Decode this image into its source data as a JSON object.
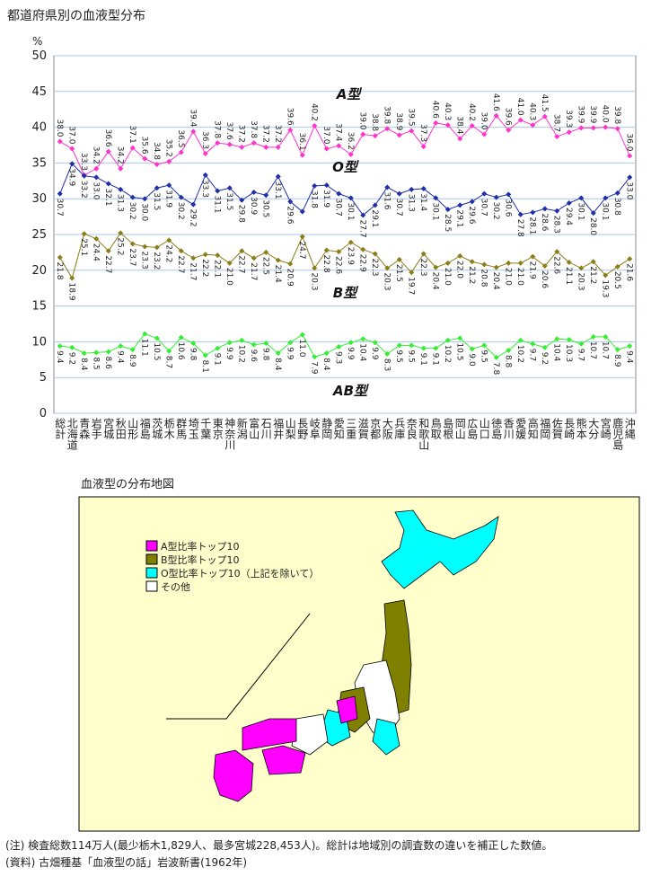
{
  "chart_data": {
    "type": "line",
    "title": "都道府県別の血液型分布",
    "y_label": "%",
    "categories": [
      "総計",
      "北海道",
      "青森",
      "岩手",
      "宮城",
      "秋田",
      "山形",
      "福島",
      "茨城",
      "栃木",
      "群馬",
      "埼玉",
      "千葉",
      "東京",
      "神奈川",
      "新潟",
      "富山",
      "石川",
      "福井",
      "山梨",
      "長野",
      "岐阜",
      "静岡",
      "愛知",
      "三重",
      "滋賀",
      "京都",
      "大阪",
      "兵庫",
      "奈良",
      "和歌山",
      "鳥取",
      "島根",
      "岡山",
      "広島",
      "山口",
      "徳島",
      "香川",
      "愛媛",
      "高知",
      "福岡",
      "佐賀",
      "長崎",
      "熊本",
      "大分",
      "宮崎",
      "鹿児島",
      "沖縄"
    ],
    "ylim": [
      0,
      50
    ],
    "yticks": [
      0,
      5,
      10,
      15,
      20,
      25,
      30,
      35,
      40,
      45,
      50
    ],
    "grid": true,
    "series": [
      {
        "name": "A型",
        "color": "#ff33cc",
        "values": [
          38.0,
          37.0,
          33.3,
          34.2,
          36.6,
          34.2,
          37.1,
          35.6,
          34.8,
          35.2,
          36.5,
          39.4,
          36.3,
          37.8,
          37.6,
          37.2,
          37.8,
          37.2,
          37.2,
          39.6,
          36.1,
          40.2,
          37.0,
          37.4,
          36.2,
          39.0,
          38.8,
          39.8,
          38.9,
          39.5,
          37.3,
          40.6,
          40.3,
          38.4,
          40.2,
          39.0,
          41.6,
          39.6,
          41.0,
          40.3,
          41.5,
          38.7,
          39.3,
          39.9,
          39.9,
          40.0,
          39.8,
          36.0
        ],
        "value_labels": [
          "38.0",
          "37.0",
          "33.3",
          "34.2",
          "36.6",
          "34.2",
          "37.1",
          "35.6",
          "34.8",
          "35.2",
          "36.5",
          "39.4",
          "36.3",
          "37.8",
          "37.6",
          "37.2",
          "37.8",
          "37.2",
          "37.2",
          "39.6",
          "36.1",
          "40.2",
          "37.0",
          "37.4",
          "36.2",
          "39.0",
          "38.8",
          "39.8",
          "38.9",
          "39.5",
          "37.3",
          "40.6",
          "40.3",
          "38.4",
          "40.2",
          "39.0",
          "41.6",
          "39.6",
          "41.0",
          "40.3",
          "41.5",
          "38.7",
          "39.3",
          "39.9",
          "39.9",
          "40.0",
          "39.8",
          "36.0"
        ]
      },
      {
        "name": "O型",
        "color": "#1f2fa8",
        "values": [
          30.7,
          34.9,
          33.2,
          33.0,
          32.1,
          31.3,
          30.2,
          30.0,
          31.5,
          31.9,
          30.2,
          29.2,
          33.3,
          31.1,
          31.5,
          29.8,
          30.9,
          30.5,
          33.1,
          29.6,
          28.2,
          31.8,
          31.9,
          30.7,
          30.1,
          27.7,
          29.1,
          31.6,
          30.7,
          31.3,
          31.4,
          30.1,
          28.5,
          29.1,
          29.6,
          30.7,
          30.2,
          30.6,
          27.8,
          28.1,
          28.6,
          28.3,
          29.4,
          30.1,
          28.0,
          30.1,
          30.8,
          33.0
        ],
        "value_labels": [
          "30.7",
          "34.9",
          "33.2",
          "33.0",
          "32.1",
          "31.3",
          "30.2",
          "30.0",
          "31.5",
          "31.9",
          "30.2",
          "29.2",
          "33.3",
          "31.1",
          "31.5",
          "29.8",
          "30.9",
          "30.5",
          "33.1",
          "29.6",
          null,
          "31.8",
          "31.9",
          "30.7",
          "30.1",
          "27.7",
          "29.1",
          "31.6",
          "30.7",
          "31.3",
          "31.4",
          "30.1",
          "28.5",
          "29.1",
          "29.6",
          "30.7",
          "30.2",
          "30.6",
          "27.8",
          "28.1",
          "28.6",
          "28.3",
          "29.4",
          "30.1",
          "28.0",
          "30.1",
          "30.8",
          "33.0"
        ]
      },
      {
        "name": "B型",
        "color": "#8b7d1a",
        "values": [
          21.8,
          18.9,
          25.1,
          24.4,
          22.7,
          25.2,
          23.7,
          23.3,
          23.2,
          24.2,
          22.7,
          21.7,
          22.2,
          22.1,
          21.0,
          22.7,
          21.7,
          22.5,
          21.4,
          20.9,
          24.7,
          20.3,
          22.8,
          22.6,
          23.9,
          22.9,
          22.3,
          20.3,
          21.5,
          19.7,
          22.3,
          20.4,
          21.0,
          22.0,
          21.2,
          20.8,
          20.4,
          21.0,
          21.0,
          21.9,
          20.6,
          22.6,
          21.1,
          20.3,
          21.2,
          19.3,
          20.5,
          21.6
        ],
        "value_labels": [
          "21.8",
          "18.9",
          "25.1",
          "24.4",
          "22.7",
          "25.2",
          "23.7",
          "23.3",
          "23.2",
          "24.2",
          "22.7",
          "21.7",
          "22.2",
          "22.1",
          "21.0",
          "22.7",
          "21.7",
          "22.5",
          "21.4",
          "20.9",
          "24.7",
          "20.3",
          "22.8",
          "22.6",
          "23.9",
          "22.9",
          "22.3",
          "20.3",
          "21.5",
          "19.7",
          "22.3",
          "20.4",
          "21.0",
          "22.0",
          "21.2",
          "20.8",
          "20.4",
          "21.0",
          "21.0",
          "21.9",
          "20.6",
          "22.6",
          "21.1",
          "20.3",
          "21.2",
          "19.3",
          "20.5",
          "21.6"
        ]
      },
      {
        "name": "AB型",
        "color": "#33ee33",
        "values": [
          9.4,
          9.2,
          8.4,
          8.5,
          8.6,
          9.4,
          8.9,
          11.1,
          10.5,
          8.7,
          10.6,
          9.8,
          8.1,
          9.1,
          9.9,
          10.2,
          9.6,
          9.8,
          8.4,
          9.9,
          11.0,
          7.9,
          8.4,
          9.3,
          9.9,
          10.4,
          9.9,
          8.3,
          9.5,
          9.5,
          9.1,
          9.1,
          10.2,
          10.5,
          9.0,
          9.5,
          7.8,
          8.8,
          10.2,
          9.7,
          9.2,
          10.4,
          10.3,
          9.7,
          10.7,
          10.7,
          8.9,
          9.4
        ],
        "value_labels": [
          "9.4",
          "9.2",
          "8.4",
          "8.5",
          "8.6",
          "9.4",
          "8.9",
          "11.1",
          "10.5",
          "8.7",
          "10.6",
          "9.8",
          "8.1",
          "9.1",
          "9.9",
          "10.2",
          "9.6",
          "9.8",
          "8.4",
          "9.9",
          "11.0",
          "7.9",
          "8.4",
          "9.3",
          "9.9",
          "10.4",
          "9.9",
          "8.3",
          "9.5",
          "9.5",
          "9.1",
          "9.1",
          "10.2",
          "10.5",
          "9.0",
          "9.5",
          "7.8",
          "8.8",
          "10.2",
          "9.7",
          "9.2",
          "10.4",
          "10.3",
          "9.7",
          "10.7",
          "10.7",
          "8.9",
          "9.4"
        ]
      }
    ]
  },
  "map": {
    "title": "血液型の分布地図",
    "legend": [
      "A型比率トップ10",
      "B型比率トップ10",
      "O型比率トップ10（上記を除いて）",
      "その他"
    ]
  },
  "notes": [
    "(注) 検査総数114万人(最少栃木1,829人、最多宮城228,453人)。総計は地域別の調査数の違いを補正した数値。",
    "(資料) 古畑種基「血液型の話」岩波新書(1962年)"
  ]
}
